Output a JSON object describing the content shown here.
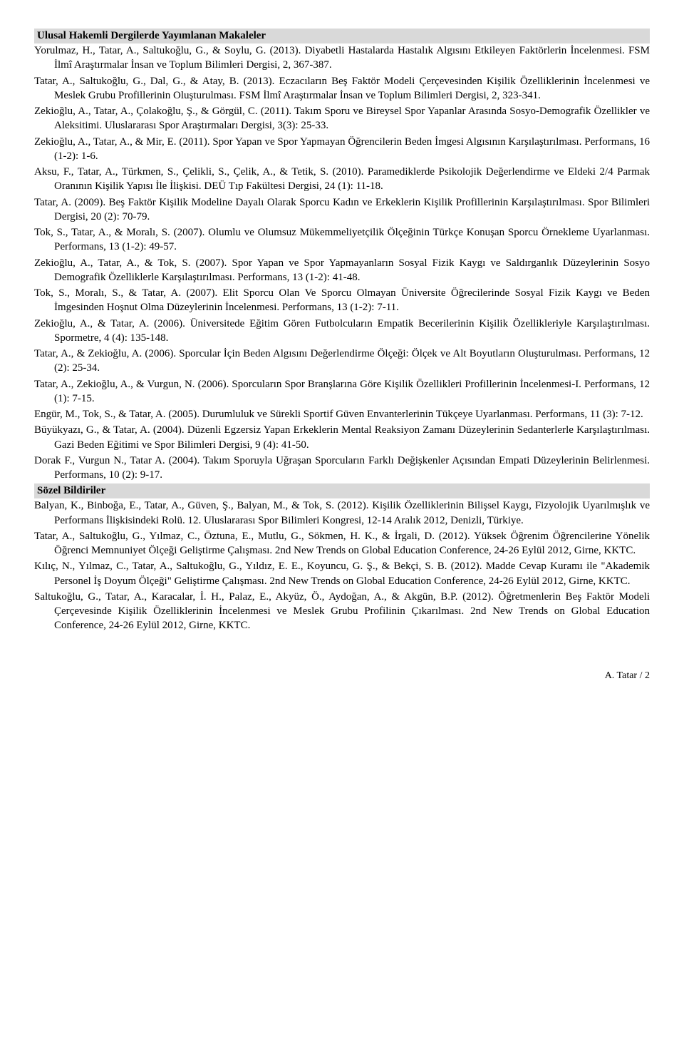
{
  "sections": [
    {
      "title": "Ulusal Hakemli Dergilerde Yayımlanan Makaleler",
      "entries": [
        "Yorulmaz, H., Tatar, A., Saltukoğlu, G., & Soylu, G. (2013). Diyabetli Hastalarda Hastalık Algısını Etkileyen Faktörlerin İncelenmesi. FSM İlmî Araştırmalar İnsan ve Toplum Bilimleri Dergisi, 2, 367-387.",
        "Tatar, A., Saltukoğlu, G., Dal, G., & Atay, B. (2013). Eczacıların Beş Faktör Modeli Çerçevesinden Kişilik Özelliklerinin İncelenmesi ve Meslek Grubu Profillerinin Oluşturulması. FSM İlmî Araştırmalar İnsan ve Toplum Bilimleri Dergisi, 2, 323-341.",
        "Zekioğlu, A., Tatar, A., Çolakoğlu, Ş., & Görgül, C. (2011). Takım Sporu ve Bireysel Spor Yapanlar Arasında Sosyo-Demografik Özellikler ve Aleksitimi. Uluslararası Spor Araştırmaları Dergisi, 3(3): 25-33.",
        "Zekioğlu, A., Tatar, A., & Mir, E. (2011). Spor Yapan ve Spor Yapmayan Öğrencilerin Beden İmgesi Algısının Karşılaştırılması. Performans,  16 (1-2): 1-6.",
        "Aksu, F., Tatar, A., Türkmen, S., Çelikli, S., Çelik, A., & Tetik, S. (2010). Paramediklerde Psikolojik Değerlendirme ve Eldeki 2/4 Parmak Oranının Kişilik Yapısı İle İlişkisi. DEÜ Tıp Fakültesi Dergisi,  24 (1): 11-18.",
        "Tatar, A. (2009). Beş Faktör Kişilik Modeline Dayalı Olarak Sporcu Kadın ve Erkeklerin Kişilik Profillerinin Karşılaştırılması. Spor Bilimleri Dergisi,  20 (2): 70-79.",
        "Tok, S., Tatar, A., & Moralı, S. (2007). Olumlu ve Olumsuz Mükemmeliyetçilik Ölçeğinin Türkçe Konuşan Sporcu Örnekleme Uyarlanması. Performans,  13 (1-2): 49-57.",
        "Zekioğlu, A., Tatar, A., & Tok, S. (2007). Spor Yapan ve Spor Yapmayanların Sosyal Fizik Kaygı ve Saldırganlık Düzeylerinin Sosyo Demografik Özelliklerle Karşılaştırılması. Performans, 13 (1-2): 41-48.",
        "Tok, S., Moralı, S., & Tatar, A. (2007). Elit Sporcu Olan Ve Sporcu Olmayan Üniversite Öğrecilerinde Sosyal Fizik Kaygı ve Beden İmgesinden Hoşnut Olma Düzeylerinin İncelenmesi. Performans, 13 (1-2): 7-11.",
        "Zekioğlu, A., & Tatar, A. (2006). Üniversitede Eğitim Gören Futbolcuların Empatik Becerilerinin Kişilik Özellikleriyle Karşılaştırılması. Spormetre,  4 (4): 135-148.",
        "Tatar, A., & Zekioğlu, A. (2006). Sporcular İçin Beden Algısını Değerlendirme Ölçeği: Ölçek ve Alt Boyutların Oluşturulması. Performans, 12 (2): 25-34.",
        "Tatar, A., Zekioğlu, A., & Vurgun, N. (2006). Sporcuların Spor Branşlarına Göre Kişilik Özellikleri Profillerinin İncelenmesi-I. Performans,  12 (1): 7-15.",
        "Engür, M., Tok, S., & Tatar, A. (2005). Durumluluk ve Sürekli Sportif Güven Envanterlerinin Tükçeye Uyarlanması. Performans, 11 (3): 7-12.",
        "Büyükyazı, G., & Tatar, A. (2004). Düzenli Egzersiz Yapan Erkeklerin Mental Reaksiyon Zamanı Düzeylerinin Sedanterlerle Karşılaştırılması. Gazi Beden Eğitimi ve Spor Bilimleri Dergisi, 9 (4): 41-50.",
        "Dorak F., Vurgun N., Tatar A. (2004). Takım Sporuyla Uğraşan Sporcuların Farklı Değişkenler Açısından Empati Düzeylerinin Belirlenmesi. Performans, 10 (2): 9-17."
      ]
    },
    {
      "title": "Sözel Bildiriler",
      "entries": [
        "Balyan, K., Binboğa, E., Tatar, A., Güven, Ş., Balyan, M., & Tok, S. (2012). Kişilik Özelliklerinin Bilişsel Kaygı, Fizyolojik Uyarılmışlık ve Performans İlişkisindeki Rolü. 12. Uluslararası Spor Bilimleri Kongresi, 12-14 Aralık 2012, Denizli, Türkiye.",
        "Tatar, A., Saltukoğlu, G., Yılmaz, C., Öztuna, E., Mutlu, G., Sökmen, H. K., & İrgali, D. (2012). Yüksek Öğrenim Öğrencilerine Yönelik Öğrenci Memnuniyet Ölçeği Geliştirme Çalışması. 2nd New Trends on Global Education Conference, 24-26 Eylül 2012, Girne, KKTC.",
        "Kılıç, N., Yılmaz, C., Tatar, A., Saltukoğlu, G., Yıldız, E. E., Koyuncu, G. Ş., & Bekçi, S. B. (2012). Madde Cevap Kuramı ile \"Akademik Personel İş Doyum Ölçeği\" Geliştirme Çalışması. 2nd New Trends on Global Education Conference, 24-26 Eylül 2012, Girne, KKTC.",
        "Saltukoğlu, G., Tatar, A., Karacalar, İ. H., Palaz, E., Akyüz, Ö., Aydoğan, A., & Akgün, B.P. (2012). Öğretmenlerin Beş Faktör Modeli Çerçevesinde Kişilik Özelliklerinin İncelenmesi ve Meslek Grubu Profilinin Çıkarılması. 2nd New Trends on Global Education Conference, 24-26 Eylül 2012, Girne, KKTC."
      ]
    }
  ],
  "footer": "A. Tatar /   2"
}
